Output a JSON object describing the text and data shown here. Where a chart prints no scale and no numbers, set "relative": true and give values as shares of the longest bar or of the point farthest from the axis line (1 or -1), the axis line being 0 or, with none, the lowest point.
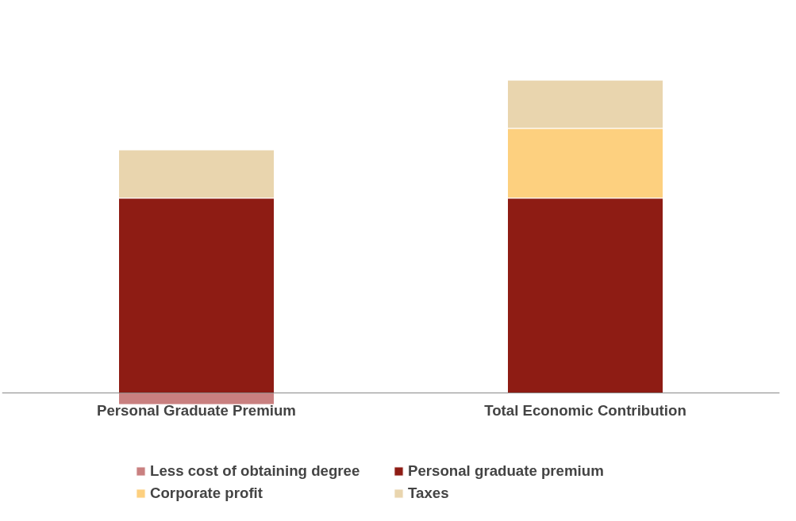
{
  "chart_data": {
    "type": "bar",
    "stacked": true,
    "relative": true,
    "categories": [
      "Personal Graduate Premium",
      "Total Economic Contribution"
    ],
    "series": [
      {
        "name": "Less cost of obtaining degree",
        "color": "#c98080",
        "values": [
          -0.037,
          null
        ]
      },
      {
        "name": "Personal graduate premium",
        "color": "#8e1c14",
        "values": [
          0.623,
          0.623
        ]
      },
      {
        "name": "Corporate profit",
        "color": "#fdd07f",
        "values": [
          null,
          0.223
        ]
      },
      {
        "name": "Taxes",
        "color": "#e9d5ae",
        "values": [
          0.154,
          0.154
        ]
      }
    ],
    "legend": "bottom",
    "grid": false
  }
}
